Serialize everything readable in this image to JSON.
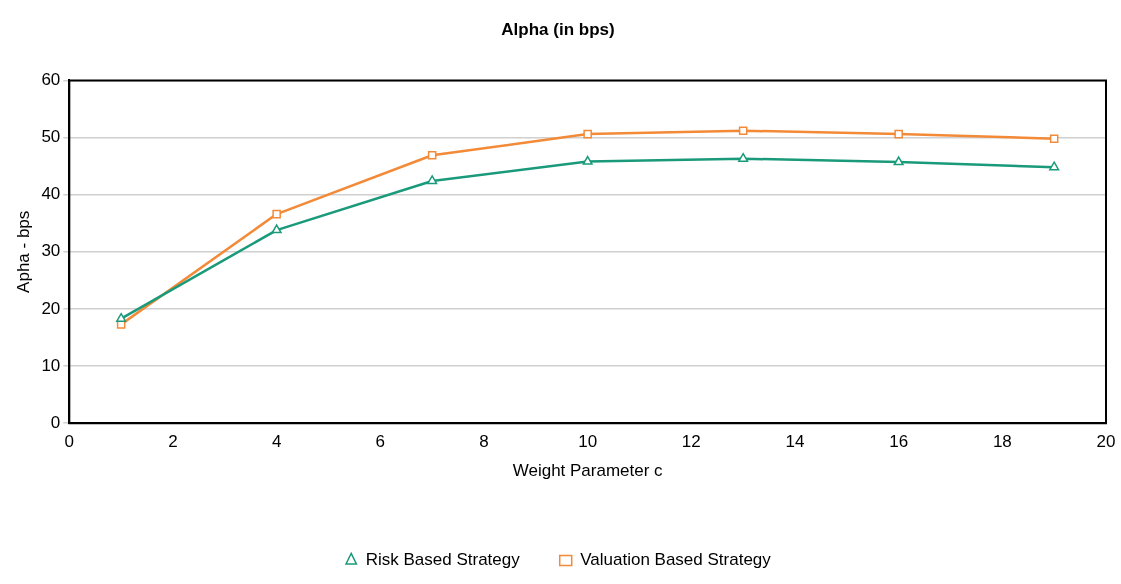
{
  "chart_data": {
    "type": "line",
    "title": "Alpha (in bps)",
    "xlabel": "Weight Parameter c",
    "ylabel": "Apha - bps",
    "x": [
      1,
      4,
      7,
      10,
      13,
      16,
      19
    ],
    "series": [
      {
        "name": "Risk Based Strategy",
        "color": "#1a9a7a",
        "values": [
          18.3,
          33.8,
          42.4,
          45.8,
          46.3,
          45.7,
          44.8
        ],
        "marker": "triangle"
      },
      {
        "name": "Valuation Based Strategy",
        "color": "#f28a38",
        "values": [
          17.3,
          36.6,
          46.9,
          50.6,
          51.2,
          50.6,
          49.8
        ],
        "marker": "square"
      }
    ],
    "xlim": [
      0,
      20
    ],
    "xticks": [
      0,
      2,
      4,
      6,
      8,
      10,
      12,
      14,
      16,
      18,
      20
    ],
    "ylim": [
      0,
      60
    ],
    "yticks": [
      0,
      10,
      20,
      30,
      40,
      50,
      60
    ],
    "grid": "y",
    "legend": "bottom",
    "line_style": "solid"
  }
}
